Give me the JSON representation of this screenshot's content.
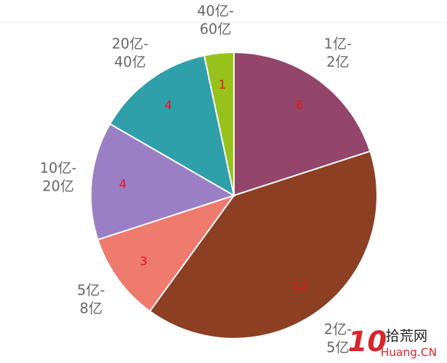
{
  "chart_data": {
    "type": "pie",
    "categories": [
      "1亿-2亿",
      "2亿-5亿",
      "5亿-8亿",
      "10亿-20亿",
      "20亿-40亿",
      "40亿-60亿"
    ],
    "values": [
      6,
      12,
      3,
      4,
      4,
      1
    ],
    "colors": [
      "#93466a",
      "#8c3f22",
      "#ef7a6e",
      "#9b7fc4",
      "#2f9faa",
      "#96c21b"
    ]
  },
  "watermark": {
    "number": "10",
    "name": "拾荒网",
    "site": "Huang.CN"
  }
}
